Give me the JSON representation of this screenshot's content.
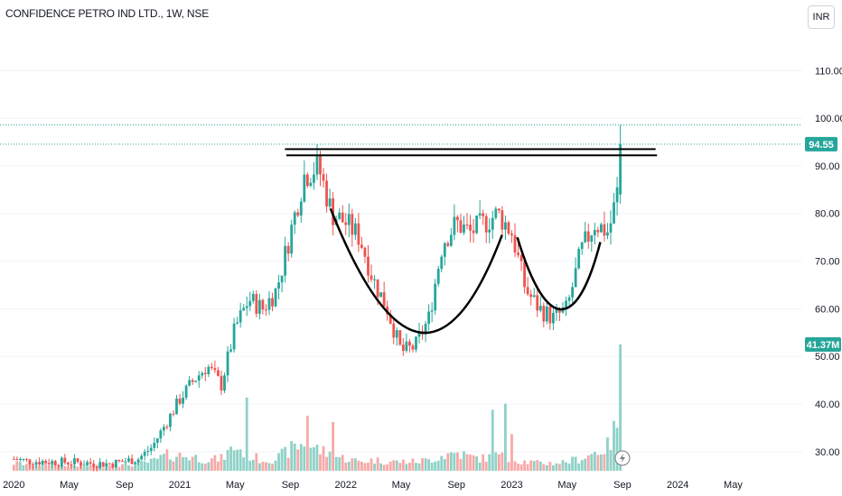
{
  "header": {
    "title": "CONFIDENCE PETRO IND LTD., 1W, NSE",
    "currency": "INR"
  },
  "colors": {
    "up": "#26a69a",
    "down": "#ef5350",
    "volume_up": "#8fd1c7",
    "volume_down": "#f7a9a7",
    "axis_text": "#131722",
    "grid_line": "#f0f3fa"
  },
  "chart_data": {
    "type": "candlestick",
    "title": "CONFIDENCE PETRO IND LTD., 1W, NSE",
    "currency": "INR",
    "ylim": [
      26,
      118
    ],
    "y_ticks": [
      30,
      40,
      50,
      60,
      70,
      80,
      90,
      100,
      110
    ],
    "y_tick_labels": [
      "30.00",
      "40.00",
      "50.00",
      "60.00",
      "70.00",
      "80.00",
      "90.00",
      "100.00",
      "110.00"
    ],
    "x_ticks": [
      "2020",
      "May",
      "Sep",
      "2021",
      "May",
      "Sep",
      "2022",
      "May",
      "Sep",
      "2023",
      "May",
      "Sep",
      "2024",
      "May"
    ],
    "x_tick_months": [
      0,
      4,
      8,
      12,
      16,
      20,
      24,
      28,
      32,
      36,
      40,
      44,
      48,
      52
    ],
    "xlim_months": [
      -1,
      57
    ],
    "price_label": "94.55",
    "price_value": 94.55,
    "price_reference_line": 98.6,
    "volume_label": "41.37M",
    "volume_label_value": 41.37,
    "price_path": [
      [
        0,
        28.5
      ],
      [
        1,
        28.0
      ],
      [
        2,
        28.0
      ],
      [
        3,
        27.8
      ],
      [
        4,
        27.8
      ],
      [
        5,
        27.7
      ],
      [
        6,
        27.5
      ],
      [
        7,
        27.5
      ],
      [
        8,
        28.0
      ],
      [
        9,
        28.5
      ],
      [
        10,
        31.0
      ],
      [
        11,
        36.0
      ],
      [
        12,
        41.0
      ],
      [
        13,
        45.0
      ],
      [
        14,
        48.0
      ],
      [
        15,
        44.0
      ],
      [
        16,
        56.0
      ],
      [
        17,
        62.0
      ],
      [
        18,
        60.0
      ],
      [
        19,
        64.0
      ],
      [
        20,
        76.0
      ],
      [
        21,
        88.0
      ],
      [
        22,
        90.0
      ],
      [
        23,
        80.0
      ],
      [
        24,
        78.0
      ],
      [
        25,
        75.0
      ],
      [
        26,
        66.0
      ],
      [
        27,
        60.0
      ],
      [
        28,
        51.0
      ],
      [
        29,
        52.0
      ],
      [
        30,
        58.0
      ],
      [
        31,
        74.0
      ],
      [
        32,
        78.0
      ],
      [
        33,
        76.0
      ],
      [
        34,
        78.0
      ],
      [
        35,
        80.0
      ],
      [
        36,
        76.0
      ],
      [
        37,
        64.0
      ],
      [
        38,
        60.0
      ],
      [
        39,
        58.0
      ],
      [
        40,
        60.0
      ],
      [
        41,
        72.0
      ],
      [
        42,
        78.0
      ],
      [
        43,
        76.0
      ],
      [
        43.6,
        84.0
      ],
      [
        44,
        94.55
      ]
    ],
    "volume_path": [
      [
        0,
        2.5
      ],
      [
        4,
        1.5
      ],
      [
        8,
        1.8
      ],
      [
        10,
        3.0
      ],
      [
        11,
        5.0
      ],
      [
        12,
        5.0
      ],
      [
        13,
        4.5
      ],
      [
        14,
        3.5
      ],
      [
        15,
        4.0
      ],
      [
        16,
        8.0
      ],
      [
        17,
        5.0
      ],
      [
        18,
        3.5
      ],
      [
        19,
        4.0
      ],
      [
        20,
        7.0
      ],
      [
        21,
        9.0
      ],
      [
        22,
        7.0
      ],
      [
        23,
        5.0
      ],
      [
        24,
        4.0
      ],
      [
        25,
        3.0
      ],
      [
        26,
        3.5
      ],
      [
        27,
        3.0
      ],
      [
        28,
        3.0
      ],
      [
        29,
        3.0
      ],
      [
        30,
        3.5
      ],
      [
        31,
        5.0
      ],
      [
        32,
        6.0
      ],
      [
        33,
        4.5
      ],
      [
        34,
        4.0
      ],
      [
        35,
        5.0
      ],
      [
        36,
        3.5
      ],
      [
        37,
        3.0
      ],
      [
        38,
        2.5
      ],
      [
        39,
        2.5
      ],
      [
        40,
        3.0
      ],
      [
        41,
        4.0
      ],
      [
        42,
        6.0
      ],
      [
        43,
        8.0
      ],
      [
        43.6,
        15.0
      ],
      [
        44,
        41.37
      ]
    ],
    "volume_spikes": [
      [
        16.8,
        24.0
      ],
      [
        21.3,
        18.0
      ],
      [
        23.0,
        16.0
      ],
      [
        34.7,
        20.0
      ],
      [
        35.6,
        22.0
      ],
      [
        35.9,
        12.0
      ],
      [
        44,
        41.37
      ]
    ],
    "annotations": {
      "resistance_lines": [
        {
          "from_month": 19.6,
          "to_month": 46.4,
          "y": 93.5
        },
        {
          "from_month": 19.7,
          "to_month": 46.5,
          "y": 92.2
        }
      ],
      "cup_curve": [
        [
          22.9,
          81
        ],
        [
          27.0,
          51
        ],
        [
          31.2,
          44
        ],
        [
          35.3,
          75.5
        ]
      ],
      "handle_curve": [
        [
          36.4,
          75
        ],
        [
          38.6,
          54
        ],
        [
          40.8,
          56
        ],
        [
          42.4,
          74
        ]
      ]
    }
  }
}
